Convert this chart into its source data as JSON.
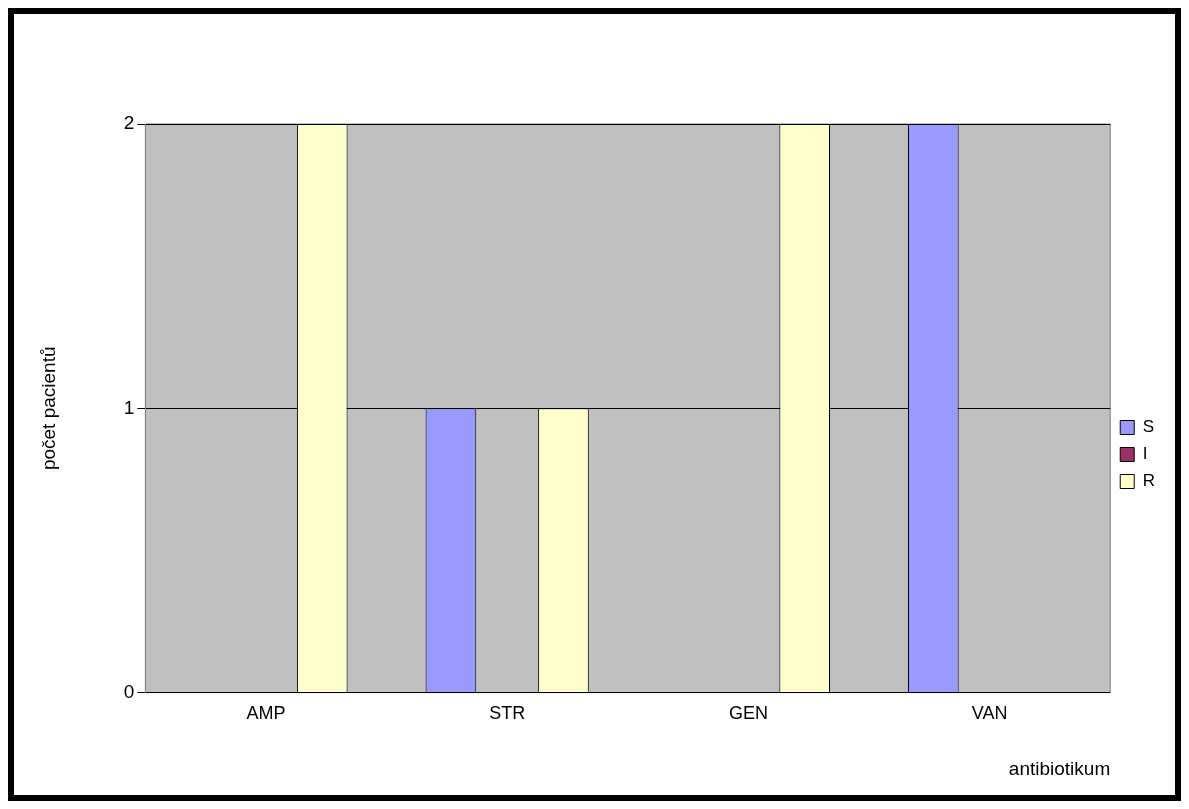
{
  "chart_data": {
    "type": "bar",
    "xlabel": "antibiotikum",
    "ylabel": "počet pacientů",
    "categories": [
      "AMP",
      "STR",
      "GEN",
      "VAN"
    ],
    "series": [
      {
        "name": "S",
        "color": "#9999ff",
        "values": [
          0,
          1,
          0,
          2
        ]
      },
      {
        "name": "I",
        "color": "#993366",
        "values": [
          0,
          0,
          0,
          0
        ]
      },
      {
        "name": "R",
        "color": "#ffffcc",
        "values": [
          2,
          1,
          2,
          0
        ]
      }
    ],
    "ylim": [
      0,
      2
    ],
    "yticks": [
      0,
      1,
      2
    ],
    "grid": "y",
    "legend": "right"
  }
}
